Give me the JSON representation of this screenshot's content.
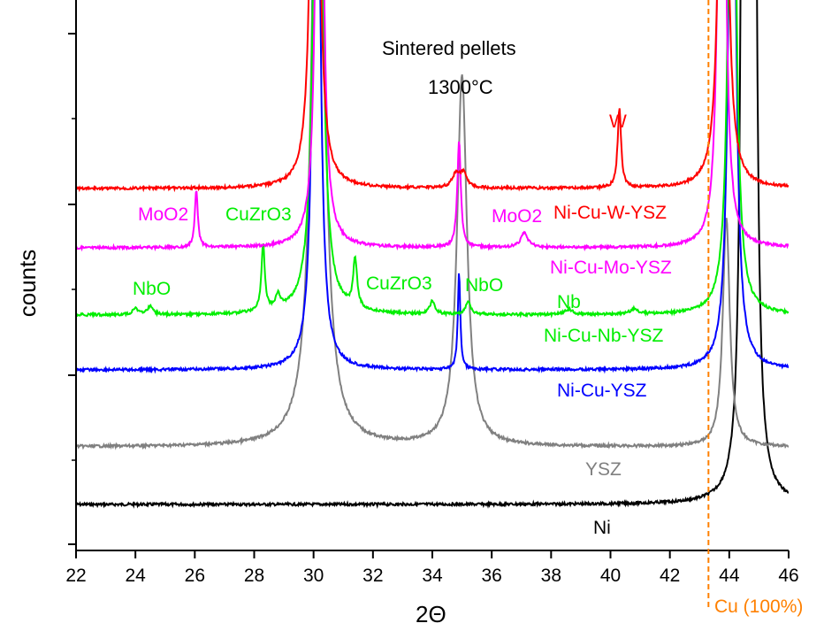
{
  "chart_data": {
    "type": "line",
    "title": "Sintered pellets",
    "subtitle": "1300°C",
    "xlabel": "2Θ",
    "ylabel": "counts",
    "xlim": [
      22,
      46
    ],
    "x_ticks": [
      22,
      24,
      26,
      28,
      30,
      32,
      34,
      36,
      38,
      40,
      42,
      44,
      46
    ],
    "y_ticks_labeled": false,
    "reference_line": {
      "x": 43.3,
      "label": "Cu (100%)",
      "color": "#ff8000"
    },
    "series": [
      {
        "name": "Ni",
        "color": "#000000",
        "baseline": 570,
        "peaks": [
          [
            44.5,
            -2000,
            0.07
          ],
          [
            44.8,
            -2000,
            0.08
          ]
        ]
      },
      {
        "name": "YSZ",
        "color": "#808080",
        "baseline": 505,
        "peaks": [
          [
            30.15,
            -900,
            0.22
          ],
          [
            35.0,
            -420,
            0.2
          ],
          [
            43.9,
            -260,
            0.14
          ]
        ]
      },
      {
        "name": "Ni-Cu-YSZ",
        "color": "#0000ff",
        "baseline": 418,
        "peaks": [
          [
            30.1,
            -900,
            0.12
          ],
          [
            34.9,
            -110,
            0.05
          ],
          [
            44.1,
            -900,
            0.12
          ]
        ]
      },
      {
        "name": "Ni-Cu-Nb-YSZ",
        "color": "#00ee00",
        "baseline": 356,
        "peaks": [
          [
            24.0,
            -8,
            0.1
          ],
          [
            24.5,
            -10,
            0.1
          ],
          [
            28.3,
            -75,
            0.07
          ],
          [
            28.8,
            -15,
            0.1
          ],
          [
            30.15,
            -900,
            0.14
          ],
          [
            31.4,
            -55,
            0.08
          ],
          [
            34.0,
            -15,
            0.1
          ],
          [
            35.2,
            -14,
            0.1
          ],
          [
            38.6,
            -6,
            0.15
          ],
          [
            40.8,
            -6,
            0.15
          ],
          [
            44.1,
            -900,
            0.12
          ]
        ]
      },
      {
        "name": "Ni-Cu-Mo-YSZ",
        "color": "#ff00ff",
        "baseline": 280,
        "peaks": [
          [
            26.05,
            -65,
            0.06
          ],
          [
            30.2,
            -900,
            0.11
          ],
          [
            34.9,
            -120,
            0.07
          ],
          [
            37.1,
            -16,
            0.15
          ],
          [
            43.75,
            -900,
            0.11
          ]
        ]
      },
      {
        "name": "Ni-Cu-W-YSZ",
        "color": "#ff0000",
        "baseline": 213,
        "peaks": [
          [
            30.05,
            -900,
            0.12
          ],
          [
            34.8,
            -16,
            0.15
          ],
          [
            35.05,
            -16,
            0.12
          ],
          [
            40.3,
            -90,
            0.07
          ],
          [
            43.8,
            -900,
            0.12
          ]
        ]
      }
    ],
    "annotations": [
      {
        "text": "W",
        "color": "#ff0000"
      },
      {
        "text": "MoO2",
        "color": "#ff00ff"
      },
      {
        "text": "MoO2",
        "color": "#ff00ff"
      },
      {
        "text": "CuZrO3",
        "color": "#00ee00"
      },
      {
        "text": "CuZrO3",
        "color": "#00ee00"
      },
      {
        "text": "NbO",
        "color": "#00ee00"
      },
      {
        "text": "NbO",
        "color": "#00ee00"
      },
      {
        "text": "Nb",
        "color": "#00ee00"
      }
    ]
  }
}
